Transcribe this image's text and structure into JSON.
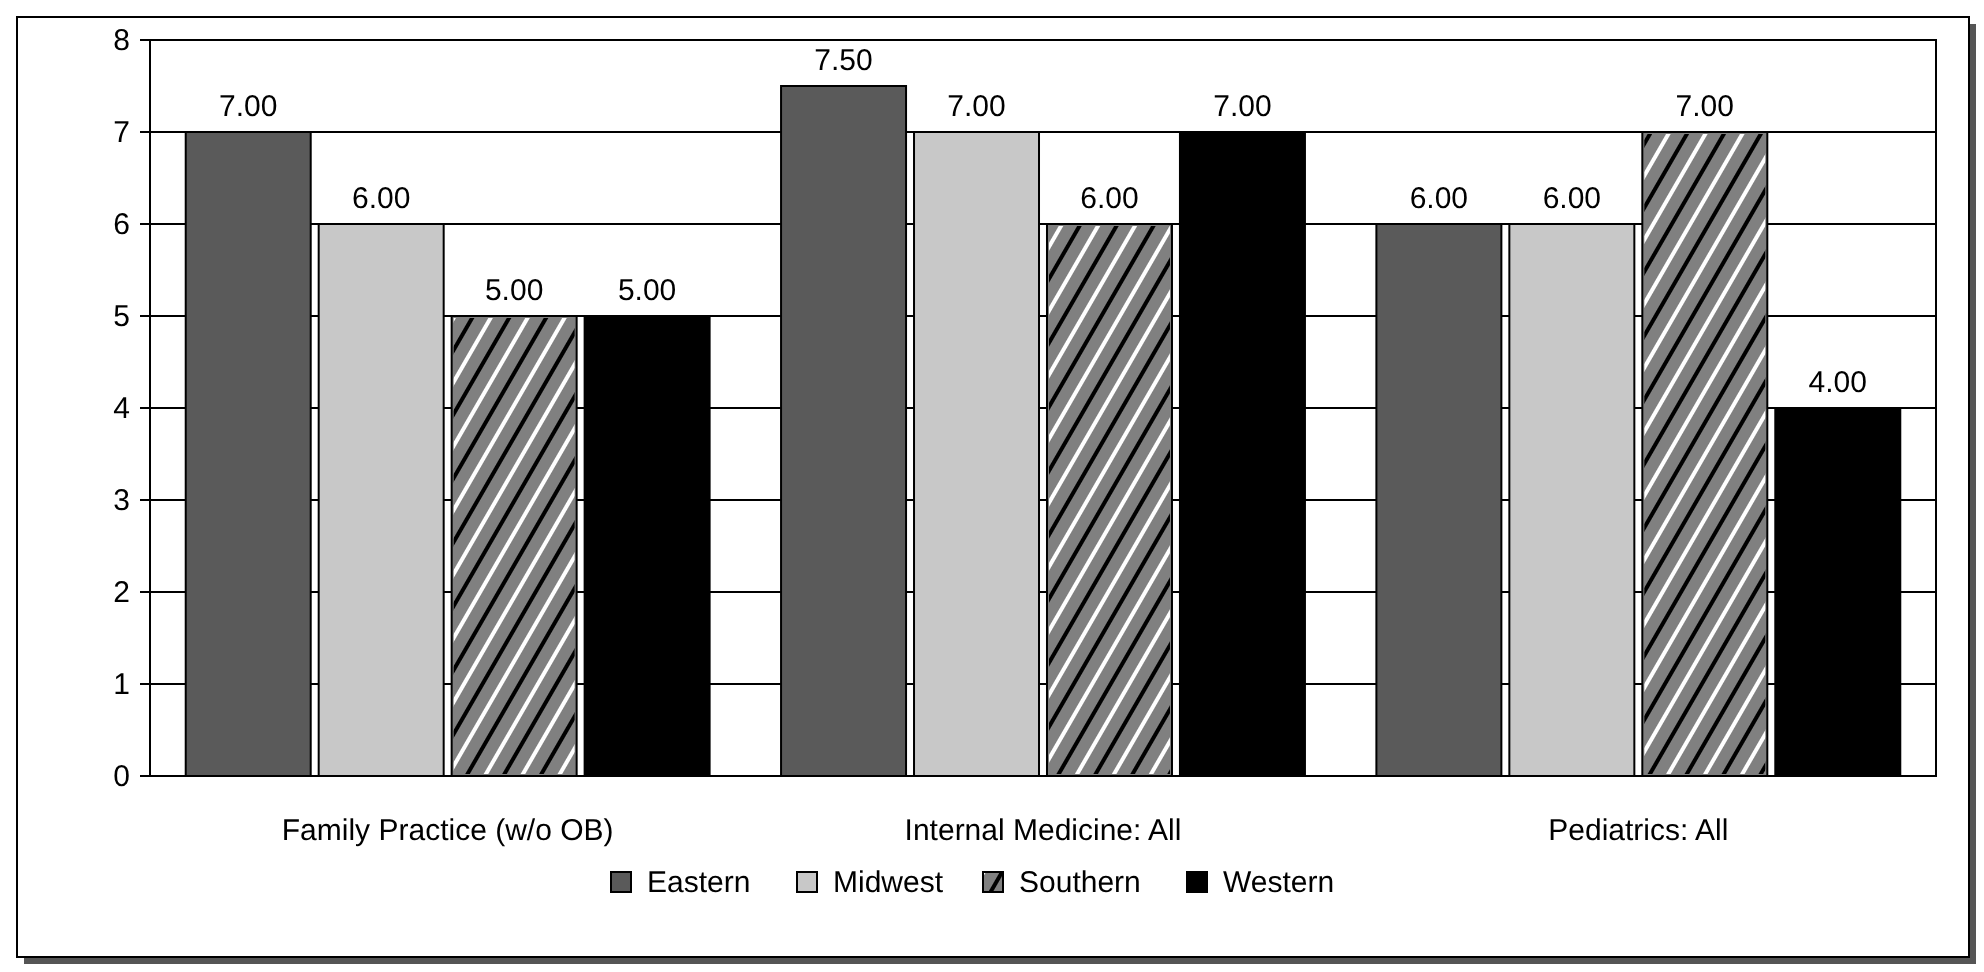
{
  "chart_data": {
    "type": "bar",
    "categories": [
      "Family Practice (w/o OB)",
      "Internal Medicine: All",
      "Pediatrics: All"
    ],
    "series": [
      {
        "name": "Eastern",
        "color": "#5a5a5a",
        "values": [
          7,
          7.5,
          6
        ],
        "value_labels": [
          "7.00",
          "7.50",
          "6.00"
        ]
      },
      {
        "name": "Midwest",
        "color": "#c8c8c8",
        "values": [
          6,
          7,
          6
        ],
        "value_labels": [
          "6.00",
          "7.00",
          "6.00"
        ]
      },
      {
        "name": "Southern",
        "color": "#808080",
        "values": [
          5,
          6,
          7
        ],
        "value_labels": [
          "5.00",
          "6.00",
          "7.00"
        ]
      },
      {
        "name": "Western",
        "color": "#000000",
        "values": [
          5,
          7,
          4
        ],
        "value_labels": [
          "5.00",
          "7.00",
          "4.00"
        ]
      }
    ],
    "ylim": [
      0,
      8
    ],
    "yticks": [
      0,
      1,
      2,
      3,
      4,
      5,
      6,
      7,
      8
    ],
    "grid": "y",
    "legend": "bottom"
  }
}
